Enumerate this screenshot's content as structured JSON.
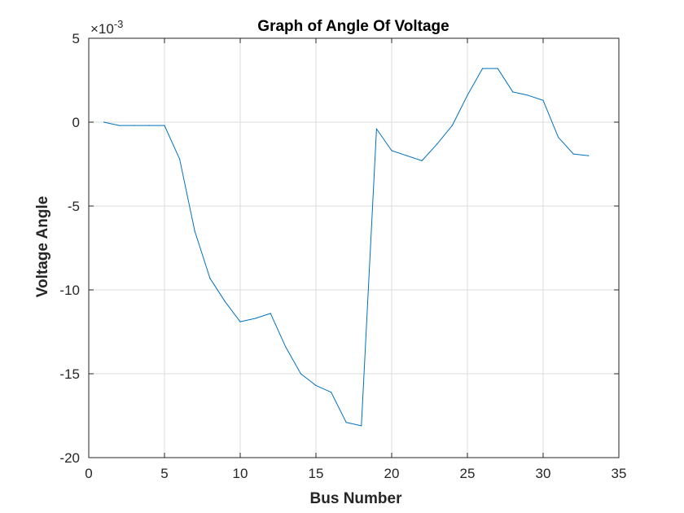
{
  "chart_data": {
    "type": "line",
    "title": "Graph of Angle Of Voltage",
    "xlabel": "Bus Number",
    "ylabel": "Voltage Angle",
    "y_exponent": {
      "base": "×10",
      "power": "-3"
    },
    "xlim": [
      0,
      35
    ],
    "ylim": [
      -20,
      5
    ],
    "xticks": [
      0,
      5,
      10,
      15,
      20,
      25,
      30,
      35
    ],
    "yticks": [
      -20,
      -15,
      -10,
      -5,
      0,
      5
    ],
    "xtick_labels": [
      "0",
      "5",
      "10",
      "15",
      "20",
      "25",
      "30",
      "35"
    ],
    "ytick_labels": [
      "-20",
      "-15",
      "-10",
      "-5",
      "0",
      "5"
    ],
    "grid": true,
    "series": [
      {
        "color": "#0072BD",
        "x": [
          1,
          2,
          3,
          4,
          5,
          6,
          7,
          8,
          9,
          10,
          11,
          12,
          13,
          14,
          15,
          16,
          17,
          18,
          19,
          20,
          21,
          22,
          23,
          24,
          25,
          26,
          27,
          28,
          29,
          30,
          31,
          32,
          33
        ],
        "y": [
          0.0,
          -0.2,
          -0.2,
          -0.2,
          -0.2,
          -2.2,
          -6.5,
          -9.3,
          -10.7,
          -11.9,
          -11.7,
          -11.4,
          -13.4,
          -15.0,
          -15.7,
          -16.1,
          -17.9,
          -18.1,
          -0.4,
          -1.7,
          -2.0,
          -2.3,
          -1.3,
          -0.2,
          1.6,
          3.2,
          3.2,
          1.8,
          1.6,
          1.3,
          -0.9,
          -1.9,
          -2.0
        ]
      }
    ]
  }
}
